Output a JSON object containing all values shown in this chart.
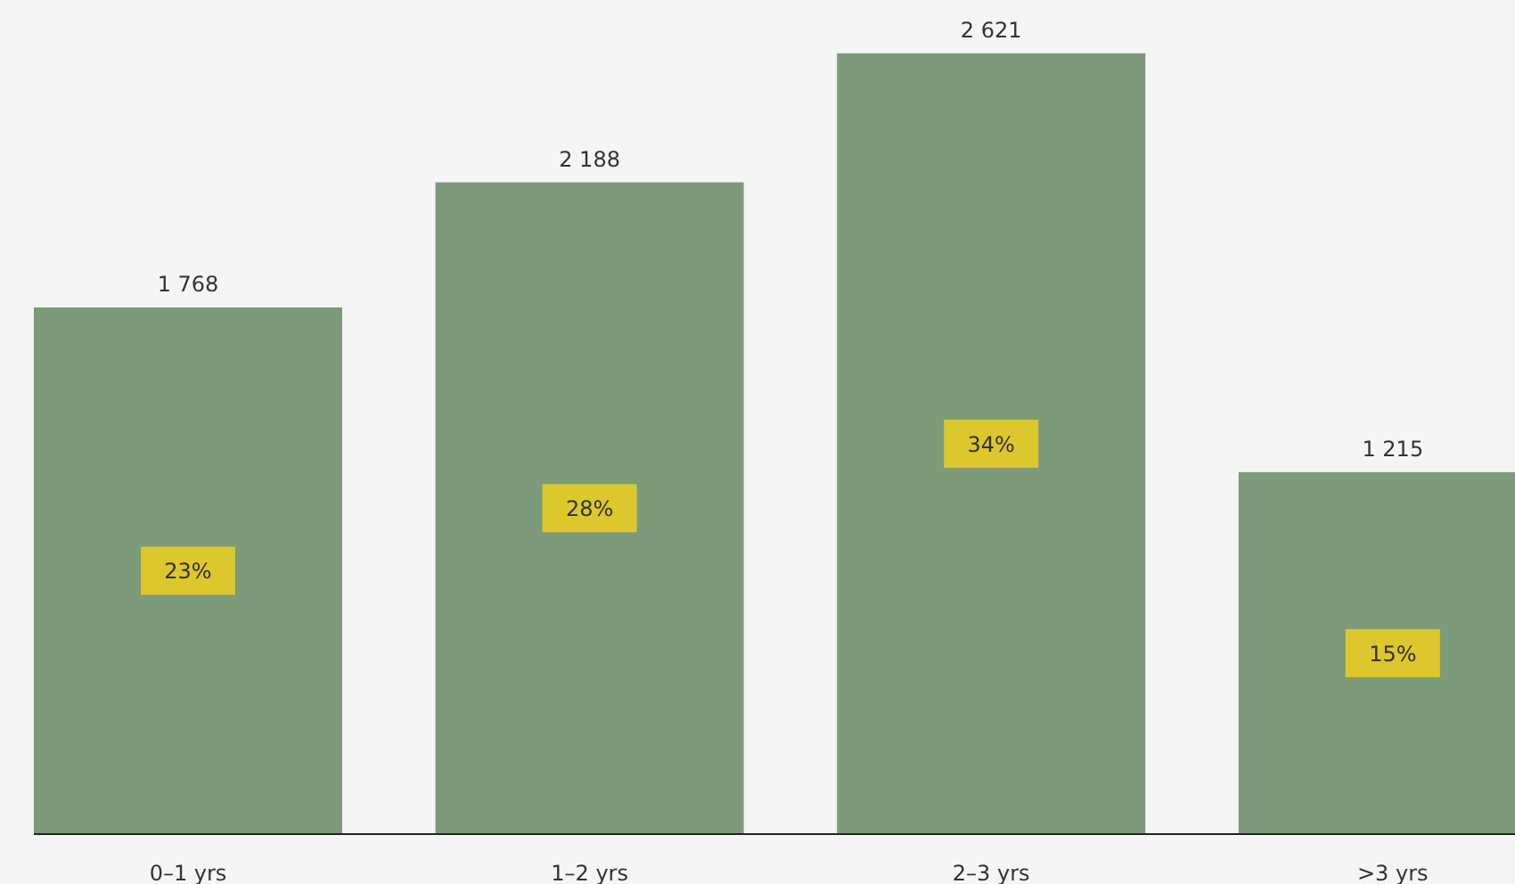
{
  "chart_data": {
    "type": "bar",
    "categories": [
      "0–1 yrs",
      "1–2 yrs",
      "2–3 yrs",
      ">3 yrs"
    ],
    "values": [
      1768,
      2188,
      2621,
      1215
    ],
    "color": "#7d9a7a",
    "relative": false,
    "ylim": [
      0,
      2800
    ],
    "value_labels": [
      "1 768",
      "2 188",
      "2 621",
      "1 215"
    ],
    "annotations": [
      "23%",
      "28%",
      "34%",
      "15%"
    ]
  }
}
